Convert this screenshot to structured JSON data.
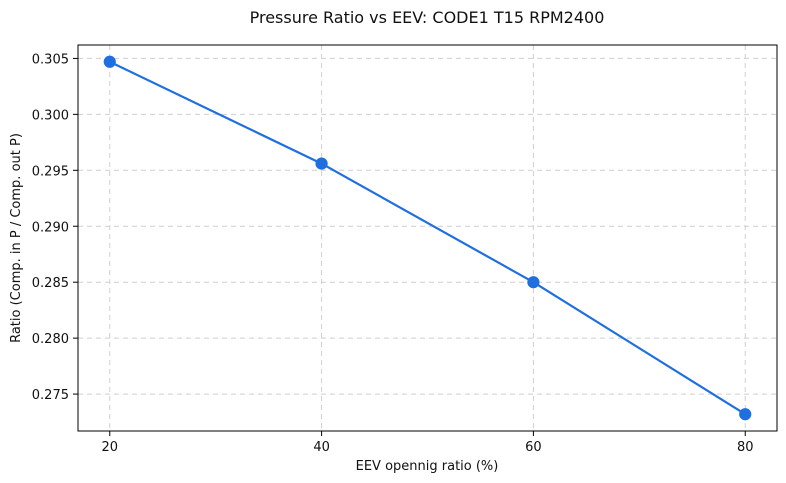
{
  "chart_data": {
    "type": "line",
    "title": "Pressure Ratio vs EEV: CODE1 T15 RPM2400",
    "xlabel": "EEV opennig ratio (%)",
    "ylabel": "Ratio (Comp. in P / Comp. out P)",
    "x": [
      20,
      40,
      60,
      80
    ],
    "series": [
      {
        "name": "Pressure Ratio",
        "values": [
          0.3047,
          0.2956,
          0.285,
          0.2732
        ],
        "color": "#1f6fe0",
        "marker": "circle"
      }
    ],
    "xlim": [
      17,
      83
    ],
    "ylim": [
      0.2717,
      0.3062
    ],
    "xticks": [
      20,
      40,
      60,
      80
    ],
    "xtick_labels": [
      "20",
      "40",
      "60",
      "80"
    ],
    "yticks": [
      0.275,
      0.28,
      0.285,
      0.29,
      0.295,
      0.3,
      0.305
    ],
    "ytick_labels": [
      "0.275",
      "0.280",
      "0.285",
      "0.290",
      "0.295",
      "0.300",
      "0.305"
    ],
    "grid": true,
    "legend": "none"
  }
}
